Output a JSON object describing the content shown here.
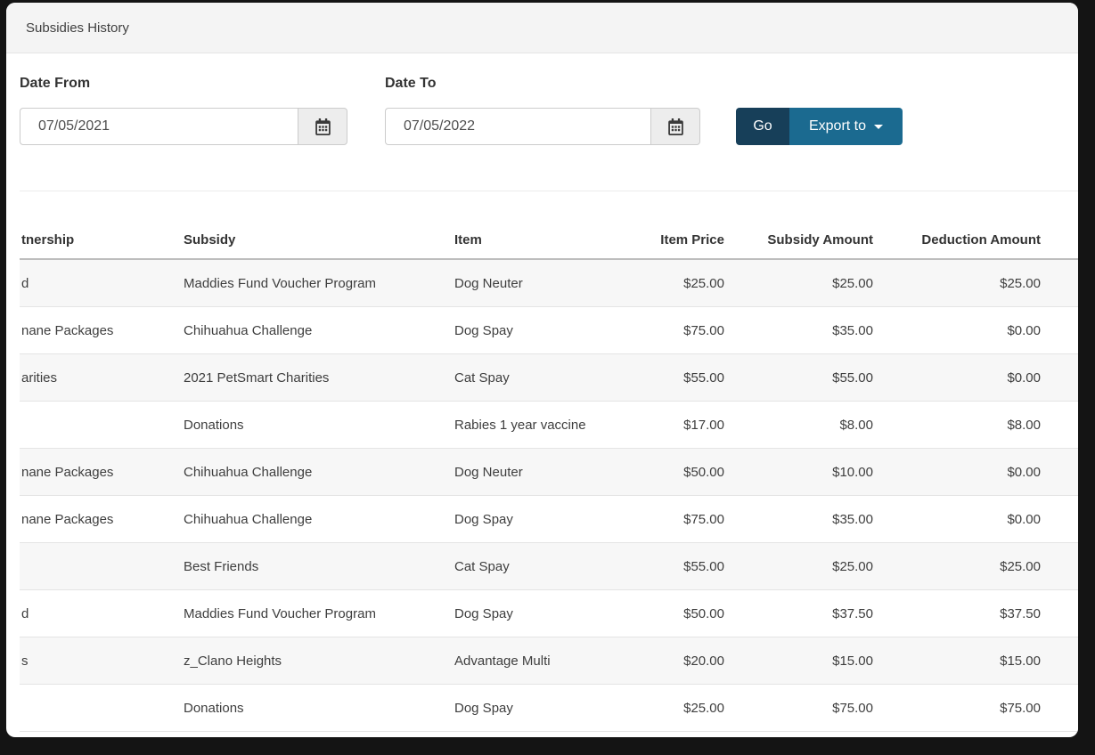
{
  "page": {
    "title": "Subsidies History"
  },
  "filters": {
    "date_from": {
      "label": "Date From",
      "value": "07/05/2021"
    },
    "date_to": {
      "label": "Date To",
      "value": "07/05/2022"
    },
    "go_button": "Go",
    "export_button": "Export to"
  },
  "colors": {
    "go_button_bg": "#173F59",
    "export_button_bg": "#1B6A90",
    "header_bar_bg": "#F4F4F4",
    "row_stripe_bg": "#F7F7F7",
    "frame_bg": "#141414"
  },
  "table": {
    "columns": [
      {
        "id": "partnership",
        "label": "tnership",
        "align": "left"
      },
      {
        "id": "subsidy",
        "label": "Subsidy",
        "align": "left"
      },
      {
        "id": "item",
        "label": "Item",
        "align": "left"
      },
      {
        "id": "item_price",
        "label": "Item Price",
        "align": "right"
      },
      {
        "id": "subsidy_amount",
        "label": "Subsidy Amount",
        "align": "right"
      },
      {
        "id": "deduction_amount",
        "label": "Deduction Amount",
        "align": "right"
      }
    ],
    "rows": [
      {
        "partnership": "d",
        "subsidy": "Maddies Fund Voucher Program",
        "item": "Dog Neuter",
        "item_price": "$25.00",
        "subsidy_amount": "$25.00",
        "deduction_amount": "$25.00"
      },
      {
        "partnership": "nane Packages",
        "subsidy": "Chihuahua Challenge",
        "item": "Dog Spay",
        "item_price": "$75.00",
        "subsidy_amount": "$35.00",
        "deduction_amount": "$0.00"
      },
      {
        "partnership": "arities",
        "subsidy": "2021 PetSmart Charities",
        "item": "Cat Spay",
        "item_price": "$55.00",
        "subsidy_amount": "$55.00",
        "deduction_amount": "$0.00"
      },
      {
        "partnership": "",
        "subsidy": "Donations",
        "item": "Rabies 1 year vaccine",
        "item_price": "$17.00",
        "subsidy_amount": "$8.00",
        "deduction_amount": "$8.00"
      },
      {
        "partnership": "nane Packages",
        "subsidy": "Chihuahua Challenge",
        "item": "Dog Neuter",
        "item_price": "$50.00",
        "subsidy_amount": "$10.00",
        "deduction_amount": "$0.00"
      },
      {
        "partnership": "nane Packages",
        "subsidy": "Chihuahua Challenge",
        "item": "Dog Spay",
        "item_price": "$75.00",
        "subsidy_amount": "$35.00",
        "deduction_amount": "$0.00"
      },
      {
        "partnership": "",
        "subsidy": "Best Friends",
        "item": "Cat Spay",
        "item_price": "$55.00",
        "subsidy_amount": "$25.00",
        "deduction_amount": "$25.00"
      },
      {
        "partnership": "d",
        "subsidy": "Maddies Fund Voucher Program",
        "item": "Dog Spay",
        "item_price": "$50.00",
        "subsidy_amount": "$37.50",
        "deduction_amount": "$37.50"
      },
      {
        "partnership": "s",
        "subsidy": "z_Clano Heights",
        "item": "Advantage Multi",
        "item_price": "$20.00",
        "subsidy_amount": "$15.00",
        "deduction_amount": "$15.00"
      },
      {
        "partnership": "",
        "subsidy": "Donations",
        "item": "Dog Spay",
        "item_price": "$25.00",
        "subsidy_amount": "$75.00",
        "deduction_amount": "$75.00"
      }
    ]
  }
}
